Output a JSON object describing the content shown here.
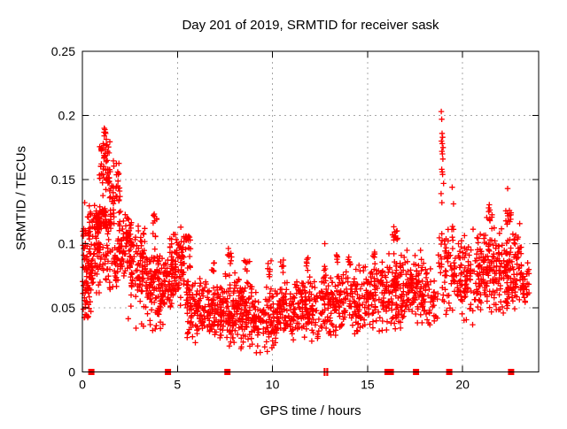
{
  "chart_data": {
    "type": "scatter",
    "title": "Day 201 of 2019, SRMTID for receiver sask",
    "xlabel": "GPS time / hours",
    "ylabel": "SRMTID / TECUs",
    "xlim": [
      0,
      24
    ],
    "ylim": [
      0,
      0.25
    ],
    "xticks": [
      0,
      5,
      10,
      15,
      20
    ],
    "xtick_labels": [
      "0",
      "5",
      "10",
      "15",
      "20"
    ],
    "yticks": [
      0,
      0.05,
      0.1,
      0.15,
      0.2,
      0.25
    ],
    "ytick_labels": [
      "0",
      "0.05",
      "0.1",
      "0.15",
      "0.2",
      "0.25"
    ],
    "grid": true,
    "legend": "none",
    "marker": {
      "shape": "plus",
      "color": "#ff0000",
      "size": 7
    },
    "grid_color": "#a8a8a8",
    "axis_color": "#000000",
    "background": "#ffffff",
    "cluster_format": [
      "hour_start",
      "hour_end",
      "count",
      "y_min",
      "y_max",
      "bias"
    ],
    "clusters": [
      [
        0.0,
        0.35,
        55,
        0.04,
        0.132,
        "mid"
      ],
      [
        0.05,
        0.45,
        22,
        0.042,
        0.075,
        "low"
      ],
      [
        0.3,
        0.9,
        80,
        0.05,
        0.135,
        "mid"
      ],
      [
        0.7,
        1.5,
        65,
        0.105,
        0.132,
        "mid"
      ],
      [
        0.9,
        1.45,
        50,
        0.128,
        0.188,
        "mid"
      ],
      [
        1.0,
        1.3,
        10,
        0.168,
        0.19,
        "mid"
      ],
      [
        0.9,
        2.0,
        60,
        0.06,
        0.105,
        "mid"
      ],
      [
        1.45,
        2.0,
        40,
        0.105,
        0.17,
        "mid"
      ],
      [
        1.9,
        2.6,
        80,
        0.06,
        0.135,
        "mid"
      ],
      [
        2.4,
        4.6,
        12,
        0.028,
        0.045,
        "mid"
      ],
      [
        2.5,
        3.3,
        85,
        0.045,
        0.115,
        "mid"
      ],
      [
        3.3,
        4.0,
        75,
        0.04,
        0.1,
        "mid"
      ],
      [
        3.7,
        3.95,
        10,
        0.1,
        0.135,
        "mid"
      ],
      [
        3.95,
        4.7,
        75,
        0.04,
        0.095,
        "mid"
      ],
      [
        4.6,
        5.35,
        85,
        0.045,
        0.118,
        "mid"
      ],
      [
        5.3,
        5.7,
        32,
        0.05,
        0.106,
        "high"
      ],
      [
        5.5,
        6.5,
        95,
        0.022,
        0.078,
        "mid"
      ],
      [
        6.5,
        7.5,
        95,
        0.018,
        0.075,
        "mid"
      ],
      [
        6.8,
        6.95,
        6,
        0.072,
        0.09,
        "mid"
      ],
      [
        7.5,
        8.3,
        90,
        0.018,
        0.082,
        "mid"
      ],
      [
        7.6,
        7.85,
        8,
        0.082,
        0.098,
        "mid"
      ],
      [
        8.3,
        9.0,
        85,
        0.015,
        0.075,
        "mid"
      ],
      [
        8.5,
        8.8,
        8,
        0.078,
        0.098,
        "mid"
      ],
      [
        9.0,
        10.2,
        105,
        0.013,
        0.07,
        "mid"
      ],
      [
        9.75,
        9.95,
        7,
        0.072,
        0.092,
        "mid"
      ],
      [
        10.2,
        11.3,
        105,
        0.02,
        0.076,
        "mid"
      ],
      [
        10.4,
        10.6,
        6,
        0.076,
        0.09,
        "mid"
      ],
      [
        11.3,
        12.5,
        105,
        0.022,
        0.08,
        "mid"
      ],
      [
        11.75,
        11.9,
        6,
        0.078,
        0.09,
        "mid"
      ],
      [
        12.5,
        13.6,
        105,
        0.025,
        0.085,
        "mid"
      ],
      [
        13.3,
        13.45,
        6,
        0.083,
        0.095,
        "mid"
      ],
      [
        13.6,
        15.0,
        115,
        0.025,
        0.085,
        "mid"
      ],
      [
        13.95,
        14.1,
        6,
        0.083,
        0.093,
        "mid"
      ],
      [
        15.0,
        16.0,
        95,
        0.028,
        0.092,
        "mid"
      ],
      [
        15.25,
        15.4,
        5,
        0.088,
        0.097,
        "mid"
      ],
      [
        16.0,
        16.8,
        85,
        0.03,
        0.1,
        "mid"
      ],
      [
        16.3,
        16.6,
        12,
        0.098,
        0.116,
        "mid"
      ],
      [
        16.8,
        17.8,
        95,
        0.035,
        0.098,
        "mid"
      ],
      [
        17.8,
        18.7,
        65,
        0.03,
        0.092,
        "mid"
      ],
      [
        18.7,
        19.1,
        25,
        0.05,
        0.12,
        "mid"
      ],
      [
        19.1,
        19.7,
        45,
        0.04,
        0.128,
        "mid"
      ],
      [
        19.7,
        20.9,
        115,
        0.035,
        0.112,
        "mid"
      ],
      [
        20.9,
        21.7,
        95,
        0.04,
        0.118,
        "mid"
      ],
      [
        21.2,
        21.6,
        10,
        0.114,
        0.133,
        "mid"
      ],
      [
        21.7,
        22.6,
        95,
        0.04,
        0.115,
        "mid"
      ],
      [
        22.25,
        22.55,
        12,
        0.112,
        0.13,
        "mid"
      ],
      [
        22.6,
        23.1,
        55,
        0.045,
        0.122,
        "mid"
      ],
      [
        23.1,
        23.5,
        30,
        0.048,
        0.092,
        "mid"
      ]
    ],
    "highlight_points": [
      [
        18.88,
        0.203
      ],
      [
        18.9,
        0.197
      ],
      [
        18.92,
        0.186
      ],
      [
        18.95,
        0.183
      ],
      [
        18.89,
        0.18
      ],
      [
        18.93,
        0.178
      ],
      [
        18.97,
        0.175
      ],
      [
        18.91,
        0.172
      ],
      [
        18.94,
        0.17
      ],
      [
        18.96,
        0.166
      ],
      [
        18.9,
        0.158
      ],
      [
        18.93,
        0.156
      ],
      [
        18.95,
        0.154
      ],
      [
        19.0,
        0.147
      ],
      [
        18.87,
        0.139
      ],
      [
        18.91,
        0.132
      ],
      [
        19.45,
        0.144
      ],
      [
        19.52,
        0.131
      ],
      [
        12.75,
        0.1
      ],
      [
        22.37,
        0.143
      ],
      [
        0.12,
        0.132
      ],
      [
        1.15,
        0.19
      ],
      [
        1.22,
        0.186
      ],
      [
        5.52,
        0.104
      ]
    ],
    "flag_squares_x": [
      0.47,
      4.5,
      7.63,
      16.05,
      16.22,
      17.55,
      19.3,
      22.55
    ],
    "flag_bars_x": [
      12.74,
      12.88
    ],
    "flags_y": 0
  }
}
